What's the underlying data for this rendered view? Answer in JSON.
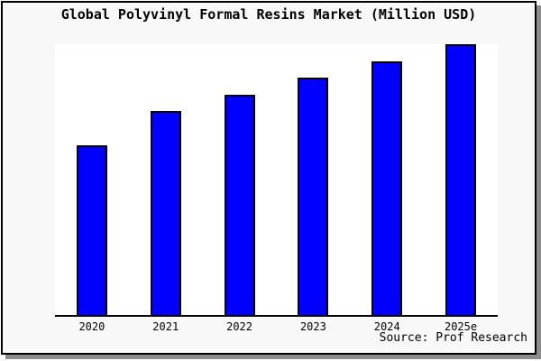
{
  "title": "Global Polyvinyl Formal Resins Market (Million USD)",
  "source_note": "Source: Prof Research",
  "colors": {
    "bar_fill": "#0000fc",
    "bar_outline": "#000000",
    "plot_background": "#ffffff",
    "frame_background": "#f8f8f8",
    "frame_border": "#000000",
    "drop_shadow": "#8c8c8c",
    "axis_line": "#000000",
    "text": "#000000"
  },
  "chart_data": {
    "type": "bar",
    "title": "Global Polyvinyl Formal Resins Market (Million USD)",
    "categories": [
      "2020",
      "2021",
      "2022",
      "2023",
      "2024",
      "2025e"
    ],
    "values": [
      62.7,
      75.3,
      81.3,
      87.7,
      93.7,
      100
    ],
    "value_scale": "relative height, percent of tallest bar (no y-axis labels shown in chart)",
    "xlabel": "",
    "ylabel": "",
    "ylim": [
      0,
      100.7
    ],
    "grid": false,
    "legend": false,
    "y_axis_ticks_shown": false,
    "annotation": "Source: Prof Research"
  }
}
